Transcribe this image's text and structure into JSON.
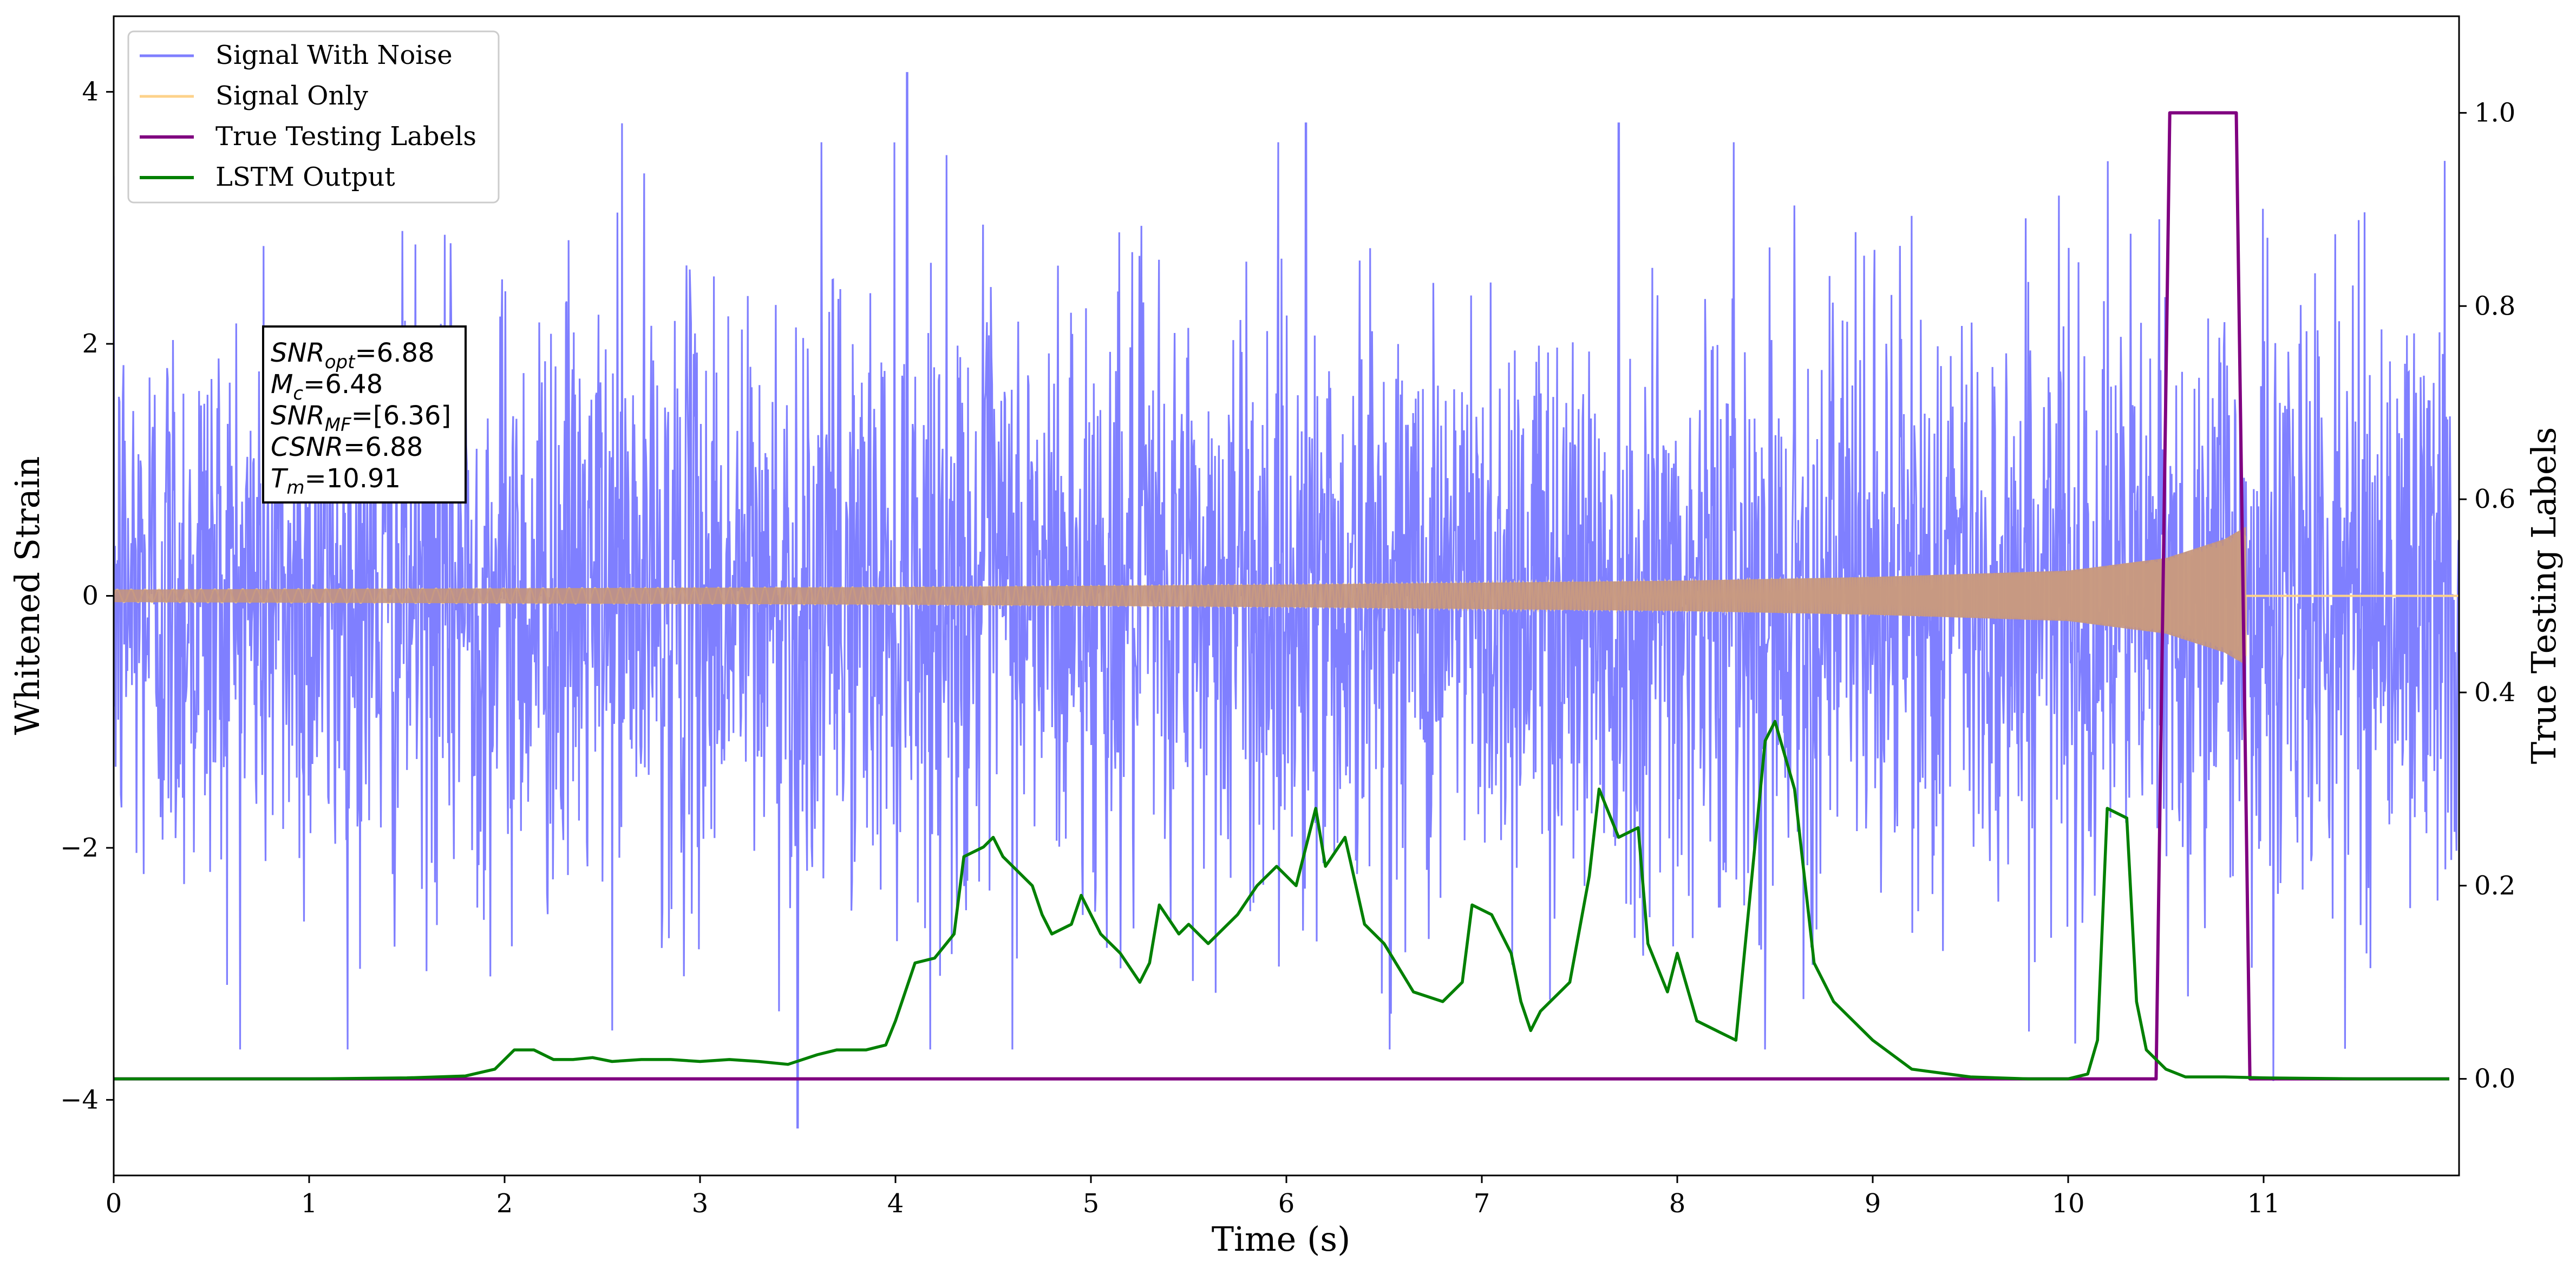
{
  "chart_data": {
    "type": "line",
    "xlabel": "Time (s)",
    "ylabel_left": "Whitened Strain",
    "ylabel_right": "True Testing Labels",
    "xlim": [
      0,
      12
    ],
    "ylim_left": [
      -4.6,
      4.6
    ],
    "ylim_right": [
      -0.1,
      1.1
    ],
    "x_ticks": [
      0,
      1,
      2,
      3,
      4,
      5,
      6,
      7,
      8,
      9,
      10,
      11
    ],
    "x_tick_labels": [
      "0",
      "1",
      "2",
      "3",
      "4",
      "5",
      "6",
      "7",
      "8",
      "9",
      "10",
      "11"
    ],
    "y_left_ticks": [
      -4,
      -2,
      0,
      2,
      4
    ],
    "y_left_tick_labels": [
      "−4",
      "−2",
      "0",
      "2",
      "4"
    ],
    "y_right_ticks": [
      0.0,
      0.2,
      0.4,
      0.6,
      0.8,
      1.0
    ],
    "y_right_tick_labels": [
      "0.0",
      "0.2",
      "0.4",
      "0.6",
      "0.8",
      "1.0"
    ],
    "grid": false,
    "legend_placement": "upper-left",
    "series": [
      {
        "name": "Signal With Noise",
        "color": "#7f7fff",
        "axis": "left",
        "description": "whitened noise dominated strain; bulk amplitude about 1.2, peaks near 3.5, extremes 4.15 at t=4.06 and -4.22 at t=3.5",
        "noise_amplitude": 1.2,
        "notable_peaks": [
          [
            4.06,
            4.15
          ],
          [
            3.5,
            -4.22
          ],
          [
            2.6,
            3.75
          ],
          [
            6.1,
            3.75
          ],
          [
            7.7,
            3.75
          ],
          [
            11.05,
            -3.85
          ]
        ]
      },
      {
        "name": "Signal Only",
        "color": "#fdd28a",
        "axis": "left",
        "description": "chirp signal with amplitude growing from about 0.05 to about 0.55 before merger at t=10.91, zero afterwards",
        "envelope": [
          [
            0.0,
            0.05
          ],
          [
            2.0,
            0.06
          ],
          [
            4.0,
            0.07
          ],
          [
            6.0,
            0.09
          ],
          [
            8.0,
            0.12
          ],
          [
            9.0,
            0.15
          ],
          [
            10.0,
            0.2
          ],
          [
            10.5,
            0.3
          ],
          [
            10.8,
            0.45
          ],
          [
            10.91,
            0.55
          ]
        ],
        "merger_time": 10.91
      },
      {
        "name": "True Testing Labels",
        "color": "#800080",
        "axis": "right",
        "x": [
          0,
          10.45,
          10.52,
          10.86,
          10.93,
          11.95
        ],
        "y": [
          0,
          0,
          1,
          1,
          0,
          0
        ]
      },
      {
        "name": "LSTM Output",
        "color": "#008000",
        "axis": "right",
        "x": [
          0.0,
          0.25,
          0.5,
          1.0,
          1.5,
          1.8,
          1.95,
          2.05,
          2.15,
          2.25,
          2.35,
          2.45,
          2.55,
          2.7,
          2.85,
          3.0,
          3.15,
          3.3,
          3.45,
          3.6,
          3.7,
          3.85,
          3.95,
          4.0,
          4.1,
          4.2,
          4.3,
          4.35,
          4.45,
          4.5,
          4.55,
          4.6,
          4.7,
          4.75,
          4.8,
          4.9,
          4.95,
          5.05,
          5.15,
          5.25,
          5.3,
          5.35,
          5.45,
          5.5,
          5.6,
          5.75,
          5.85,
          5.95,
          6.05,
          6.15,
          6.2,
          6.3,
          6.4,
          6.5,
          6.65,
          6.8,
          6.9,
          6.95,
          7.05,
          7.15,
          7.2,
          7.25,
          7.3,
          7.45,
          7.55,
          7.6,
          7.7,
          7.8,
          7.85,
          7.95,
          8.0,
          8.1,
          8.2,
          8.3,
          8.45,
          8.5,
          8.6,
          8.7,
          8.8,
          9.0,
          9.2,
          9.5,
          9.8,
          10.0,
          10.1,
          10.15,
          10.2,
          10.3,
          10.35,
          10.4,
          10.5,
          10.6,
          10.8,
          11.0,
          11.5,
          11.95
        ],
        "y": [
          0.0,
          0.0,
          0.0,
          0.0,
          0.001,
          0.003,
          0.01,
          0.03,
          0.03,
          0.02,
          0.02,
          0.022,
          0.018,
          0.02,
          0.02,
          0.018,
          0.02,
          0.018,
          0.015,
          0.025,
          0.03,
          0.03,
          0.035,
          0.06,
          0.12,
          0.125,
          0.15,
          0.23,
          0.24,
          0.25,
          0.23,
          0.22,
          0.2,
          0.17,
          0.15,
          0.16,
          0.19,
          0.15,
          0.13,
          0.1,
          0.12,
          0.18,
          0.15,
          0.16,
          0.14,
          0.17,
          0.2,
          0.22,
          0.2,
          0.28,
          0.22,
          0.25,
          0.16,
          0.14,
          0.09,
          0.08,
          0.1,
          0.18,
          0.17,
          0.13,
          0.08,
          0.05,
          0.07,
          0.1,
          0.21,
          0.3,
          0.25,
          0.26,
          0.14,
          0.09,
          0.13,
          0.06,
          0.05,
          0.04,
          0.35,
          0.37,
          0.3,
          0.12,
          0.08,
          0.04,
          0.01,
          0.002,
          0.0,
          0.0,
          0.005,
          0.04,
          0.28,
          0.27,
          0.08,
          0.03,
          0.01,
          0.002,
          0.002,
          0.001,
          0.0,
          0.0
        ]
      }
    ],
    "annotation": {
      "lines": [
        {
          "var": "SNR",
          "sub": "opt",
          "value": "=6.88"
        },
        {
          "var": "M",
          "sub": "c",
          "value": "=6.48"
        },
        {
          "var": "SNR",
          "sub": "MF",
          "value": "=[6.36]"
        },
        {
          "var": "CSNR",
          "sub": "",
          "value": "=6.88"
        },
        {
          "var": "T",
          "sub": "m",
          "value": "=10.91"
        }
      ]
    }
  }
}
